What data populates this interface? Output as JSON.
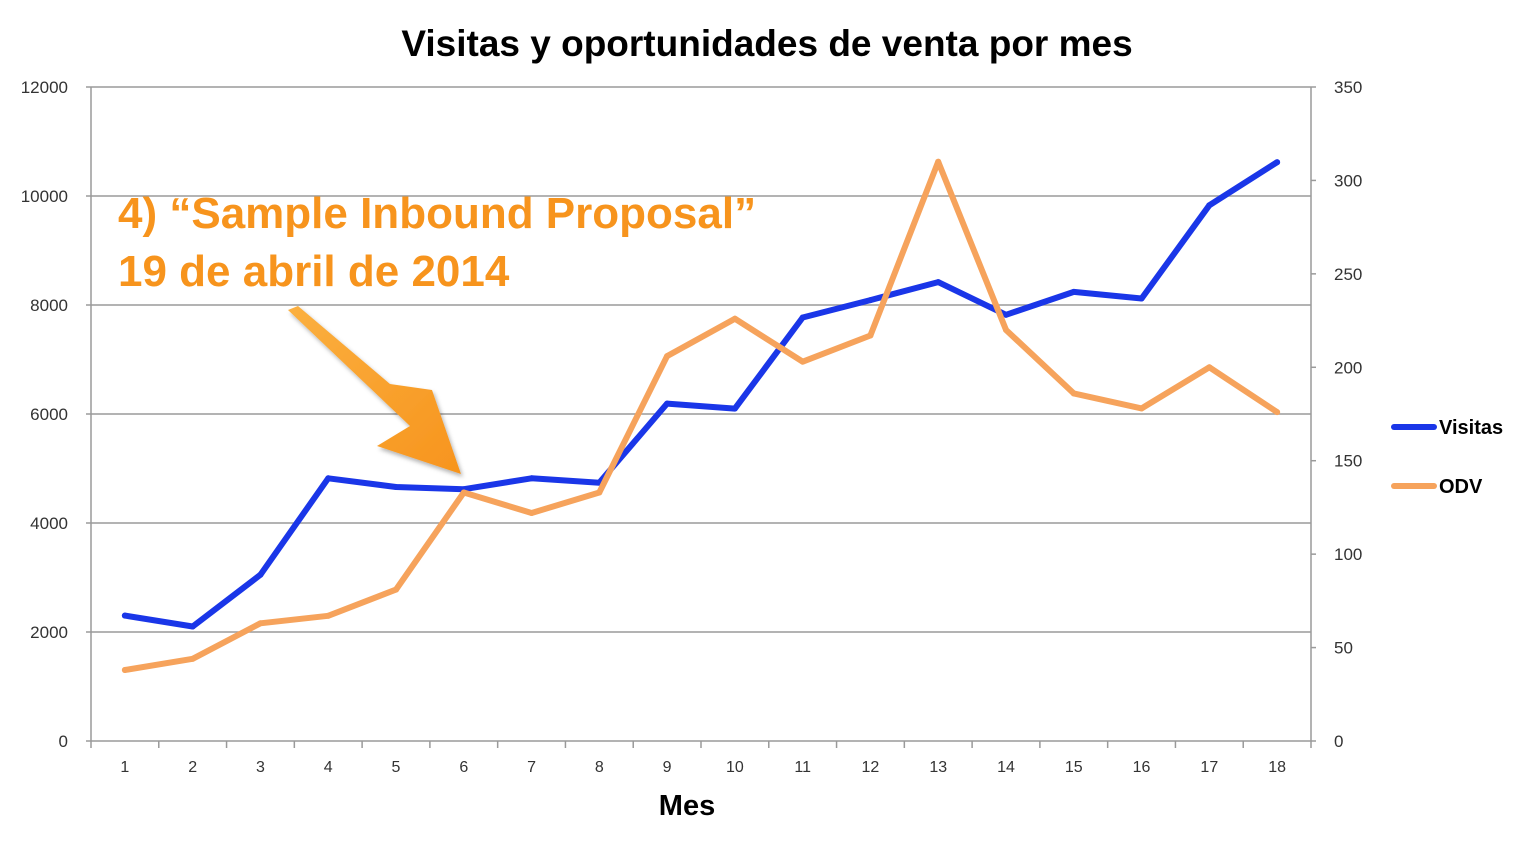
{
  "chart_data": {
    "type": "line",
    "title": "Visitas y oportunidades de venta por mes",
    "xlabel": "Mes",
    "ylabel": "",
    "ylabel_right": "",
    "x": [
      "1",
      "2",
      "3",
      "4",
      "5",
      "6",
      "7",
      "8",
      "9",
      "10",
      "11",
      "12",
      "13",
      "14",
      "15",
      "16",
      "17",
      "18"
    ],
    "ylim": [
      0,
      12000
    ],
    "y_ticks": [
      "0",
      "2000",
      "4000",
      "6000",
      "8000",
      "10000",
      "12000"
    ],
    "y2lim": [
      0,
      350
    ],
    "y2_ticks": [
      "0",
      "50",
      "100",
      "150",
      "200",
      "250",
      "300",
      "350"
    ],
    "grid": true,
    "legend_position": "right",
    "series": [
      {
        "name": "Visitas",
        "axis": "left",
        "color": "#1a36e8",
        "values": [
          2300,
          2100,
          3050,
          4820,
          4660,
          4620,
          4820,
          4740,
          6190,
          6100,
          7770,
          8090,
          8420,
          7820,
          8240,
          8120,
          9830,
          10620
        ]
      },
      {
        "name": "ODV",
        "axis": "right",
        "color": "#f6a35c",
        "values": [
          38,
          44,
          63,
          67,
          81,
          133,
          122,
          133,
          206,
          226,
          203,
          217,
          310,
          220,
          186,
          178,
          200,
          176
        ]
      }
    ],
    "annotation": {
      "line1": "4) “Sample Inbound Proposal”",
      "line2": "19 de abril de 2014",
      "color": "#f7941d",
      "points_to_x": "6"
    }
  }
}
